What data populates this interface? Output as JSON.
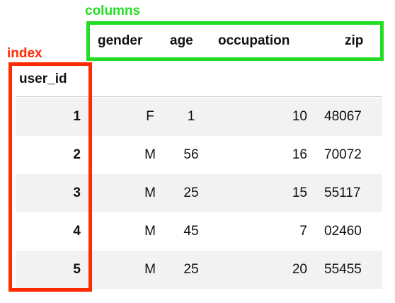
{
  "annotations": {
    "columns": {
      "label": "columns",
      "color": "#22dd22"
    },
    "index": {
      "label": "index",
      "color": "#ff2a00"
    }
  },
  "table": {
    "index_name": "user_id",
    "columns": [
      "gender",
      "age",
      "occupation",
      "zip"
    ],
    "rows": [
      {
        "user_id": "1",
        "gender": "F",
        "age": "1",
        "occupation": "10",
        "zip": "48067"
      },
      {
        "user_id": "2",
        "gender": "M",
        "age": "56",
        "occupation": "16",
        "zip": "70072"
      },
      {
        "user_id": "3",
        "gender": "M",
        "age": "25",
        "occupation": "15",
        "zip": "55117"
      },
      {
        "user_id": "4",
        "gender": "M",
        "age": "45",
        "occupation": "7",
        "zip": "02460"
      },
      {
        "user_id": "5",
        "gender": "M",
        "age": "25",
        "occupation": "20",
        "zip": "55455"
      }
    ]
  }
}
